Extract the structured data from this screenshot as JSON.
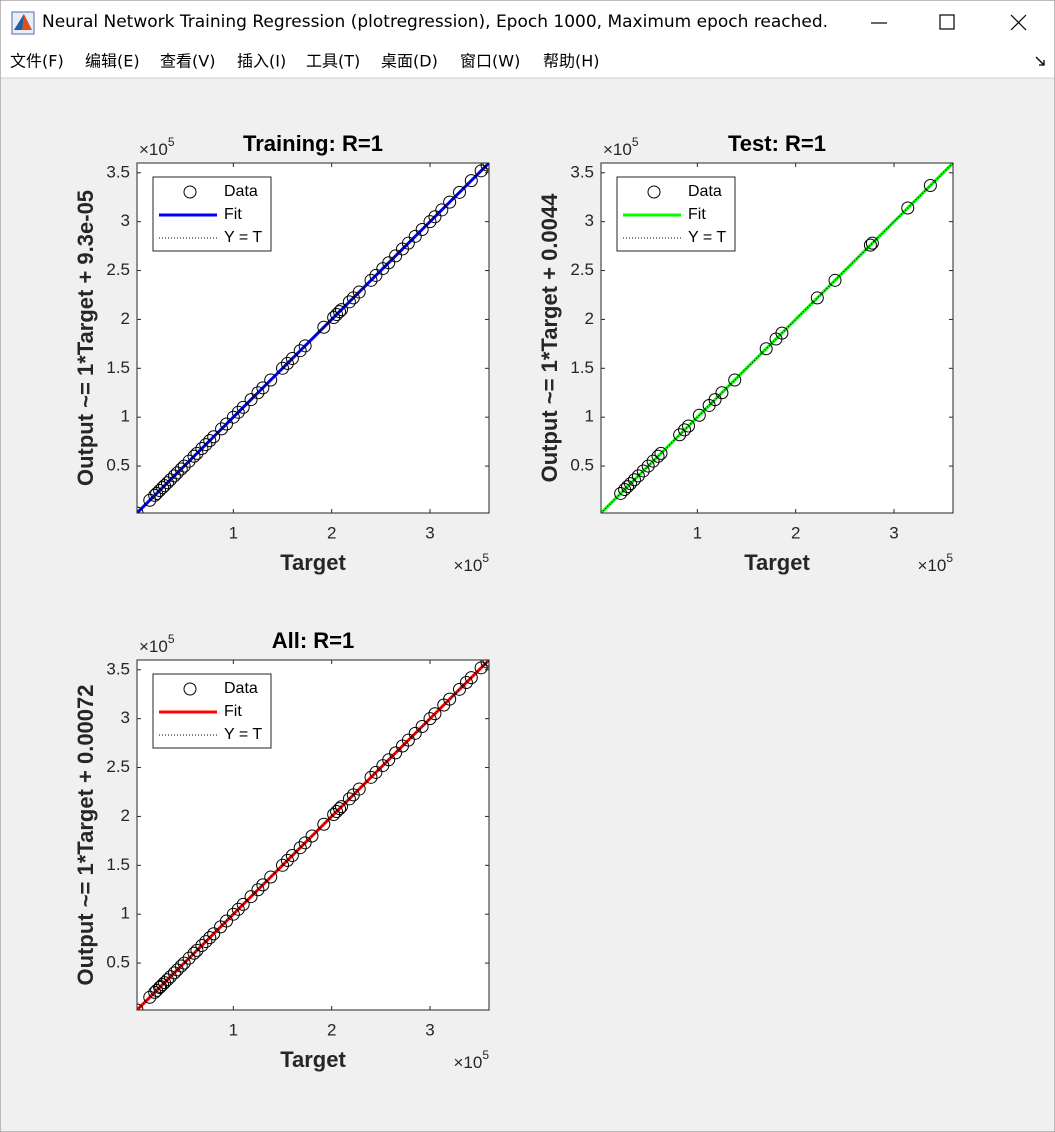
{
  "window": {
    "title": "Neural Network Training Regression (plotregression), Epoch 1000, Maximum epoch reached.",
    "menu": [
      "文件(F)",
      "编辑(E)",
      "查看(V)",
      "插入(I)",
      "工具(T)",
      "桌面(D)",
      "窗口(W)",
      "帮助(H)"
    ]
  },
  "chart_data": [
    {
      "type": "scatter",
      "title": "Training: R=1",
      "xlabel": "Target",
      "ylabel": "Output ~= 1*Target + 9.3e-05",
      "x_multiplier": {
        "base": "×10",
        "exponent": "5"
      },
      "y_multiplier": {
        "base": "×10",
        "exponent": "5"
      },
      "xlim": [
        0.02,
        3.6
      ],
      "ylim": [
        0.02,
        3.6
      ],
      "xticks": [
        1,
        2,
        3
      ],
      "yticks": [
        0.5,
        1,
        1.5,
        2,
        2.5,
        3,
        3.5
      ],
      "legend": "upper left",
      "series": [
        {
          "name": "Data",
          "color": "#000000",
          "marker": "o",
          "x": [
            0.02,
            0.15,
            0.2,
            0.22,
            0.25,
            0.28,
            0.3,
            0.33,
            0.36,
            0.4,
            0.43,
            0.47,
            0.5,
            0.55,
            0.6,
            0.63,
            0.68,
            0.72,
            0.76,
            0.8,
            0.88,
            0.93,
            1.0,
            1.05,
            1.1,
            1.18,
            1.25,
            1.3,
            1.38,
            1.5,
            1.55,
            1.6,
            1.68,
            1.73,
            1.92,
            2.02,
            2.05,
            2.08,
            2.1,
            2.18,
            2.22,
            2.28,
            2.4,
            2.45,
            2.52,
            2.58,
            2.65,
            2.72,
            2.78,
            2.85,
            2.92,
            3.0,
            3.05,
            3.12,
            3.2,
            3.3,
            3.42,
            3.52,
            3.58,
            3.6
          ],
          "values": [
            0.02,
            0.15,
            0.2,
            0.22,
            0.25,
            0.28,
            0.3,
            0.33,
            0.36,
            0.4,
            0.43,
            0.47,
            0.5,
            0.55,
            0.6,
            0.63,
            0.68,
            0.72,
            0.76,
            0.8,
            0.88,
            0.93,
            1.0,
            1.05,
            1.1,
            1.18,
            1.25,
            1.3,
            1.38,
            1.5,
            1.55,
            1.6,
            1.68,
            1.73,
            1.92,
            2.02,
            2.05,
            2.08,
            2.1,
            2.18,
            2.22,
            2.28,
            2.4,
            2.45,
            2.52,
            2.58,
            2.65,
            2.72,
            2.78,
            2.85,
            2.92,
            3.0,
            3.05,
            3.12,
            3.2,
            3.3,
            3.42,
            3.52,
            3.58,
            3.6
          ]
        },
        {
          "name": "Fit",
          "color": "#0000ff",
          "linestyle": "solid"
        },
        {
          "name": "Y = T",
          "color": "#000000",
          "linestyle": "dotted"
        }
      ]
    },
    {
      "type": "scatter",
      "title": "Test: R=1",
      "xlabel": "Target",
      "ylabel": "Output ~= 1*Target + 0.0044",
      "x_multiplier": {
        "base": "×10",
        "exponent": "5"
      },
      "y_multiplier": {
        "base": "×10",
        "exponent": "5"
      },
      "xlim": [
        0.02,
        3.6
      ],
      "ylim": [
        0.02,
        3.6
      ],
      "xticks": [
        1,
        2,
        3
      ],
      "yticks": [
        0.5,
        1,
        1.5,
        2,
        2.5,
        3,
        3.5
      ],
      "legend": "upper left",
      "series": [
        {
          "name": "Data",
          "color": "#000000",
          "marker": "o",
          "x": [
            0.22,
            0.26,
            0.29,
            0.32,
            0.36,
            0.4,
            0.45,
            0.5,
            0.55,
            0.6,
            0.63,
            0.82,
            0.87,
            0.91,
            1.02,
            1.12,
            1.18,
            1.25,
            1.38,
            1.7,
            1.8,
            1.86,
            2.22,
            2.4,
            2.76,
            2.78,
            3.14,
            3.37
          ],
          "values": [
            0.22,
            0.26,
            0.29,
            0.32,
            0.36,
            0.4,
            0.45,
            0.5,
            0.55,
            0.6,
            0.63,
            0.82,
            0.87,
            0.91,
            1.02,
            1.12,
            1.18,
            1.25,
            1.38,
            1.7,
            1.8,
            1.86,
            2.22,
            2.4,
            2.76,
            2.78,
            3.14,
            3.37
          ]
        },
        {
          "name": "Fit",
          "color": "#00ff00",
          "linestyle": "solid"
        },
        {
          "name": "Y = T",
          "color": "#000000",
          "linestyle": "dotted"
        }
      ]
    },
    {
      "type": "scatter",
      "title": "All: R=1",
      "xlabel": "Target",
      "ylabel": "Output ~= 1*Target + 0.00072",
      "x_multiplier": {
        "base": "×10",
        "exponent": "5"
      },
      "y_multiplier": {
        "base": "×10",
        "exponent": "5"
      },
      "xlim": [
        0.02,
        3.6
      ],
      "ylim": [
        0.02,
        3.6
      ],
      "xticks": [
        1,
        2,
        3
      ],
      "yticks": [
        0.5,
        1,
        1.5,
        2,
        2.5,
        3,
        3.5
      ],
      "legend": "upper left",
      "series": [
        {
          "name": "Data",
          "color": "#000000",
          "marker": "o",
          "x": [
            0.02,
            0.15,
            0.2,
            0.22,
            0.25,
            0.26,
            0.28,
            0.3,
            0.33,
            0.36,
            0.4,
            0.43,
            0.47,
            0.5,
            0.55,
            0.6,
            0.63,
            0.68,
            0.72,
            0.76,
            0.8,
            0.87,
            0.93,
            1.0,
            1.05,
            1.1,
            1.18,
            1.25,
            1.3,
            1.38,
            1.5,
            1.55,
            1.6,
            1.68,
            1.73,
            1.8,
            1.92,
            2.02,
            2.05,
            2.08,
            2.1,
            2.18,
            2.22,
            2.28,
            2.4,
            2.45,
            2.52,
            2.58,
            2.65,
            2.72,
            2.78,
            2.85,
            2.92,
            3.0,
            3.05,
            3.14,
            3.2,
            3.3,
            3.37,
            3.42,
            3.52,
            3.58,
            3.6
          ],
          "values": [
            0.02,
            0.15,
            0.2,
            0.22,
            0.25,
            0.26,
            0.28,
            0.3,
            0.33,
            0.36,
            0.4,
            0.43,
            0.47,
            0.5,
            0.55,
            0.6,
            0.63,
            0.68,
            0.72,
            0.76,
            0.8,
            0.87,
            0.93,
            1.0,
            1.05,
            1.1,
            1.18,
            1.25,
            1.3,
            1.38,
            1.5,
            1.55,
            1.6,
            1.68,
            1.73,
            1.8,
            1.92,
            2.02,
            2.05,
            2.08,
            2.1,
            2.18,
            2.22,
            2.28,
            2.4,
            2.45,
            2.52,
            2.58,
            2.65,
            2.72,
            2.78,
            2.85,
            2.92,
            3.0,
            3.05,
            3.14,
            3.2,
            3.3,
            3.37,
            3.42,
            3.52,
            3.58,
            3.6
          ]
        },
        {
          "name": "Fit",
          "color": "#ff0000",
          "linestyle": "solid"
        },
        {
          "name": "Y = T",
          "color": "#000000",
          "linestyle": "dotted"
        }
      ]
    }
  ]
}
